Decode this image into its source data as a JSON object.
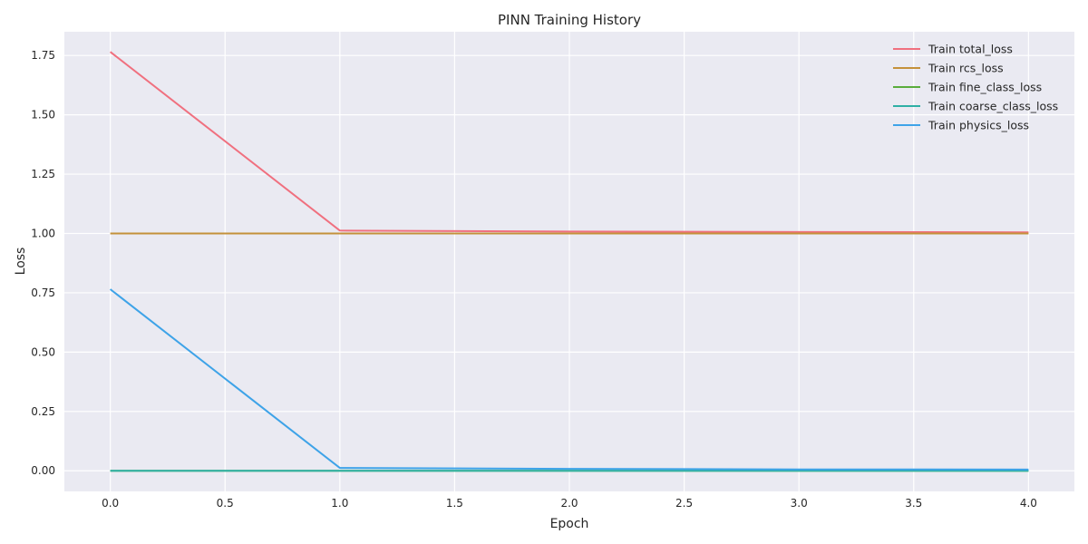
{
  "chart_data": {
    "type": "line",
    "title": "PINN Training History",
    "xlabel": "Epoch",
    "ylabel": "Loss",
    "xlim": [
      -0.2,
      4.2
    ],
    "ylim": [
      -0.087,
      1.85
    ],
    "xticks": [
      0.0,
      0.5,
      1.0,
      1.5,
      2.0,
      2.5,
      3.0,
      3.5,
      4.0
    ],
    "xtick_labels": [
      "0.0",
      "0.5",
      "1.0",
      "1.5",
      "2.0",
      "2.5",
      "3.0",
      "3.5",
      "4.0"
    ],
    "yticks": [
      0.0,
      0.25,
      0.5,
      0.75,
      1.0,
      1.25,
      1.5,
      1.75
    ],
    "ytick_labels": [
      "0.00",
      "0.25",
      "0.50",
      "0.75",
      "1.00",
      "1.25",
      "1.50",
      "1.75"
    ],
    "grid": true,
    "legend_position": "top-right",
    "background": "#eaeaf2",
    "x": [
      0,
      1,
      2,
      3,
      4
    ],
    "series": [
      {
        "name": "Train total_loss",
        "color": "#f0707f",
        "values": [
          1.765,
          1.012,
          1.008,
          1.006,
          1.005
        ]
      },
      {
        "name": "Train rcs_loss",
        "color": "#c4913a",
        "values": [
          1.0,
          1.0,
          1.0,
          1.0,
          1.0
        ]
      },
      {
        "name": "Train fine_class_loss",
        "color": "#5aad3c",
        "values": [
          0.0,
          0.0,
          0.0,
          0.0,
          0.0
        ]
      },
      {
        "name": "Train coarse_class_loss",
        "color": "#2fb0a5",
        "values": [
          0.0,
          0.0,
          0.0,
          0.0,
          0.0
        ]
      },
      {
        "name": "Train physics_loss",
        "color": "#3ea3e8",
        "values": [
          0.765,
          0.012,
          0.008,
          0.006,
          0.005
        ]
      }
    ]
  }
}
